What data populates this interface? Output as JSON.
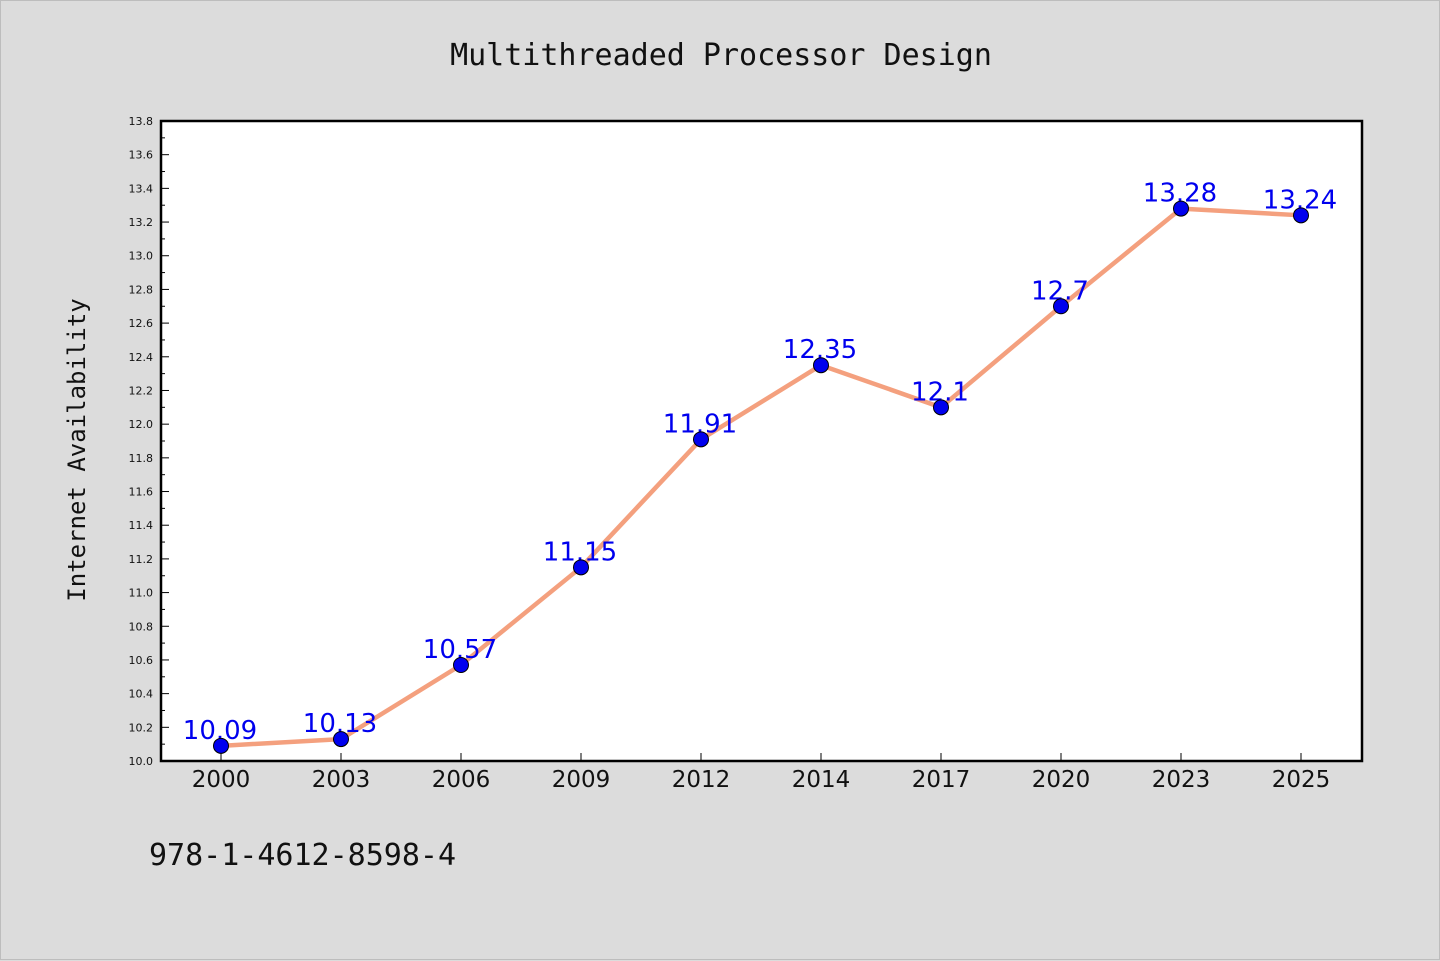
{
  "chart_data": {
    "type": "line",
    "title": "Multithreaded Processor Design",
    "xlabel": "",
    "ylabel": "Internet Availability",
    "categories": [
      "2000",
      "2003",
      "2006",
      "2009",
      "2012",
      "2014",
      "2017",
      "2020",
      "2023",
      "2025"
    ],
    "values": [
      10.09,
      10.13,
      10.57,
      11.15,
      11.91,
      12.35,
      12.1,
      12.7,
      13.28,
      13.24
    ],
    "data_labels": [
      "10.09",
      "10.13",
      "10.57",
      "11.15",
      "11.91",
      "12.35",
      "12.1",
      "12.7",
      "13.28",
      "13.24"
    ],
    "ylim": [
      10.0,
      13.8
    ],
    "yticks": [
      "10.0",
      "10.2",
      "10.4",
      "10.6",
      "10.8",
      "11.0",
      "11.2",
      "11.4",
      "11.6",
      "11.8",
      "12.0",
      "12.2",
      "12.4",
      "12.6",
      "12.8",
      "13.0",
      "13.2",
      "13.4",
      "13.6",
      "13.8"
    ],
    "grid": false,
    "colors": {
      "line": "#f4a07e",
      "marker": "#0000ee",
      "label": "#0000ee"
    }
  },
  "footnote": "978-1-4612-8598-4"
}
